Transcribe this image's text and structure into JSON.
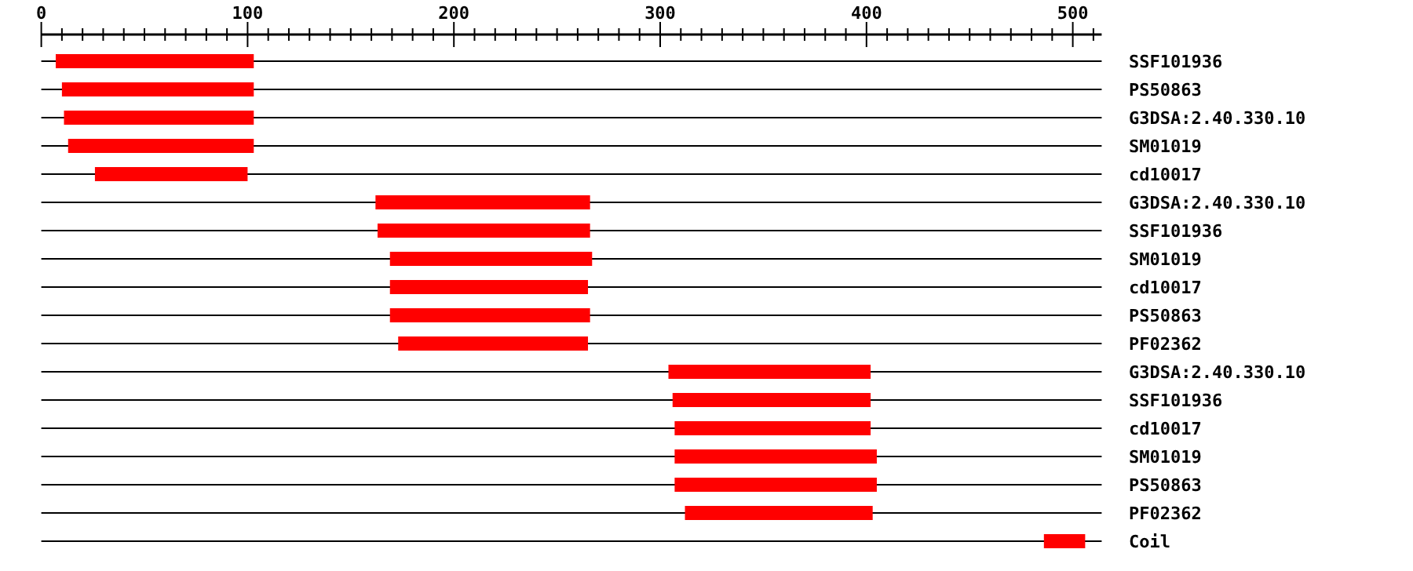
{
  "chart_data": {
    "type": "bar",
    "orientation": "horizontal",
    "categories": [
      "SSF101936",
      "PS50863",
      "G3DSA:2.40.330.10",
      "SM01019",
      "cd10017",
      "G3DSA:2.40.330.10",
      "SSF101936",
      "SM01019",
      "cd10017",
      "PS50863",
      "PF02362",
      "G3DSA:2.40.330.10",
      "SSF101936",
      "cd10017",
      "SM01019",
      "PS50863",
      "PF02362",
      "Coil"
    ],
    "base": [
      7,
      10,
      11,
      13,
      26,
      162,
      163,
      169,
      169,
      169,
      173,
      304,
      306,
      307,
      307,
      307,
      312,
      486
    ],
    "values": [
      96,
      93,
      92,
      90,
      74,
      104,
      103,
      98,
      96,
      97,
      92,
      98,
      96,
      95,
      98,
      98,
      91,
      20
    ],
    "color": "#ff0000",
    "xlim": [
      0,
      514
    ],
    "xticks": [
      0,
      {
        "value": 10,
        "label": null
      },
      {
        "value": 20,
        "label": null
      },
      {
        "value": 30,
        "label": null
      },
      {
        "value": 40,
        "label": null
      },
      {
        "value": 50,
        "label": null
      },
      {
        "value": 60,
        "label": null
      },
      {
        "value": 70,
        "label": null
      },
      {
        "value": 80,
        "label": null
      },
      {
        "value": 90,
        "label": null
      },
      100,
      {
        "value": 110,
        "label": null
      },
      {
        "value": 120,
        "label": null
      },
      {
        "value": 130,
        "label": null
      },
      {
        "value": 140,
        "label": null
      },
      {
        "value": 150,
        "label": null
      },
      {
        "value": 160,
        "label": null
      },
      {
        "value": 170,
        "label": null
      },
      {
        "value": 180,
        "label": null
      },
      {
        "value": 190,
        "label": null
      },
      200,
      {
        "value": 210,
        "label": null
      },
      {
        "value": 220,
        "label": null
      },
      {
        "value": 230,
        "label": null
      },
      {
        "value": 240,
        "label": null
      },
      {
        "value": 250,
        "label": null
      },
      {
        "value": 260,
        "label": null
      },
      {
        "value": 270,
        "label": null
      },
      {
        "value": 280,
        "label": null
      },
      {
        "value": 290,
        "label": null
      },
      300,
      {
        "value": 310,
        "label": null
      },
      {
        "value": 320,
        "label": null
      },
      {
        "value": 330,
        "label": null
      },
      {
        "value": 340,
        "label": null
      },
      {
        "value": 350,
        "label": null
      },
      {
        "value": 360,
        "label": null
      },
      {
        "value": 370,
        "label": null
      },
      {
        "value": 380,
        "label": null
      },
      {
        "value": 390,
        "label": null
      },
      400,
      {
        "value": 410,
        "label": null
      },
      {
        "value": 420,
        "label": null
      },
      {
        "value": 430,
        "label": null
      },
      {
        "value": 440,
        "label": null
      },
      {
        "value": 450,
        "label": null
      },
      {
        "value": 460,
        "label": null
      },
      {
        "value": 470,
        "label": null
      },
      {
        "value": 480,
        "label": null
      },
      {
        "value": 490,
        "label": null
      },
      500,
      {
        "value": 510,
        "label": null
      }
    ],
    "grid": "y"
  }
}
